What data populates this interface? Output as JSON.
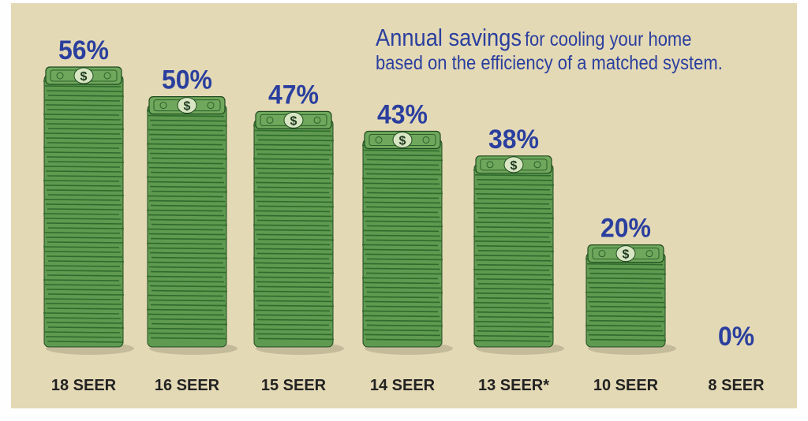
{
  "title": {
    "main": "Annual savings",
    "rest": "for cooling your home",
    "line2": "based on the efficiency of a matched system."
  },
  "colors": {
    "background": "#e4d9b5",
    "title": "#2a3f9e",
    "value_label": "#2a3f9e",
    "category_label": "#222222",
    "bill_light": "#5f9a50",
    "bill_dark": "#2e6b2c"
  },
  "chart_data": {
    "type": "bar",
    "mark_style": "stacks of dollar bills",
    "categories": [
      "18 SEER",
      "16 SEER",
      "15 SEER",
      "14 SEER",
      "13 SEER*",
      "10 SEER",
      "8 SEER"
    ],
    "values": [
      56,
      50,
      47,
      43,
      38,
      20,
      0
    ],
    "value_labels": [
      "56%",
      "50%",
      "47%",
      "43%",
      "38%",
      "20%",
      "0%"
    ],
    "ylim": [
      0,
      60
    ]
  }
}
